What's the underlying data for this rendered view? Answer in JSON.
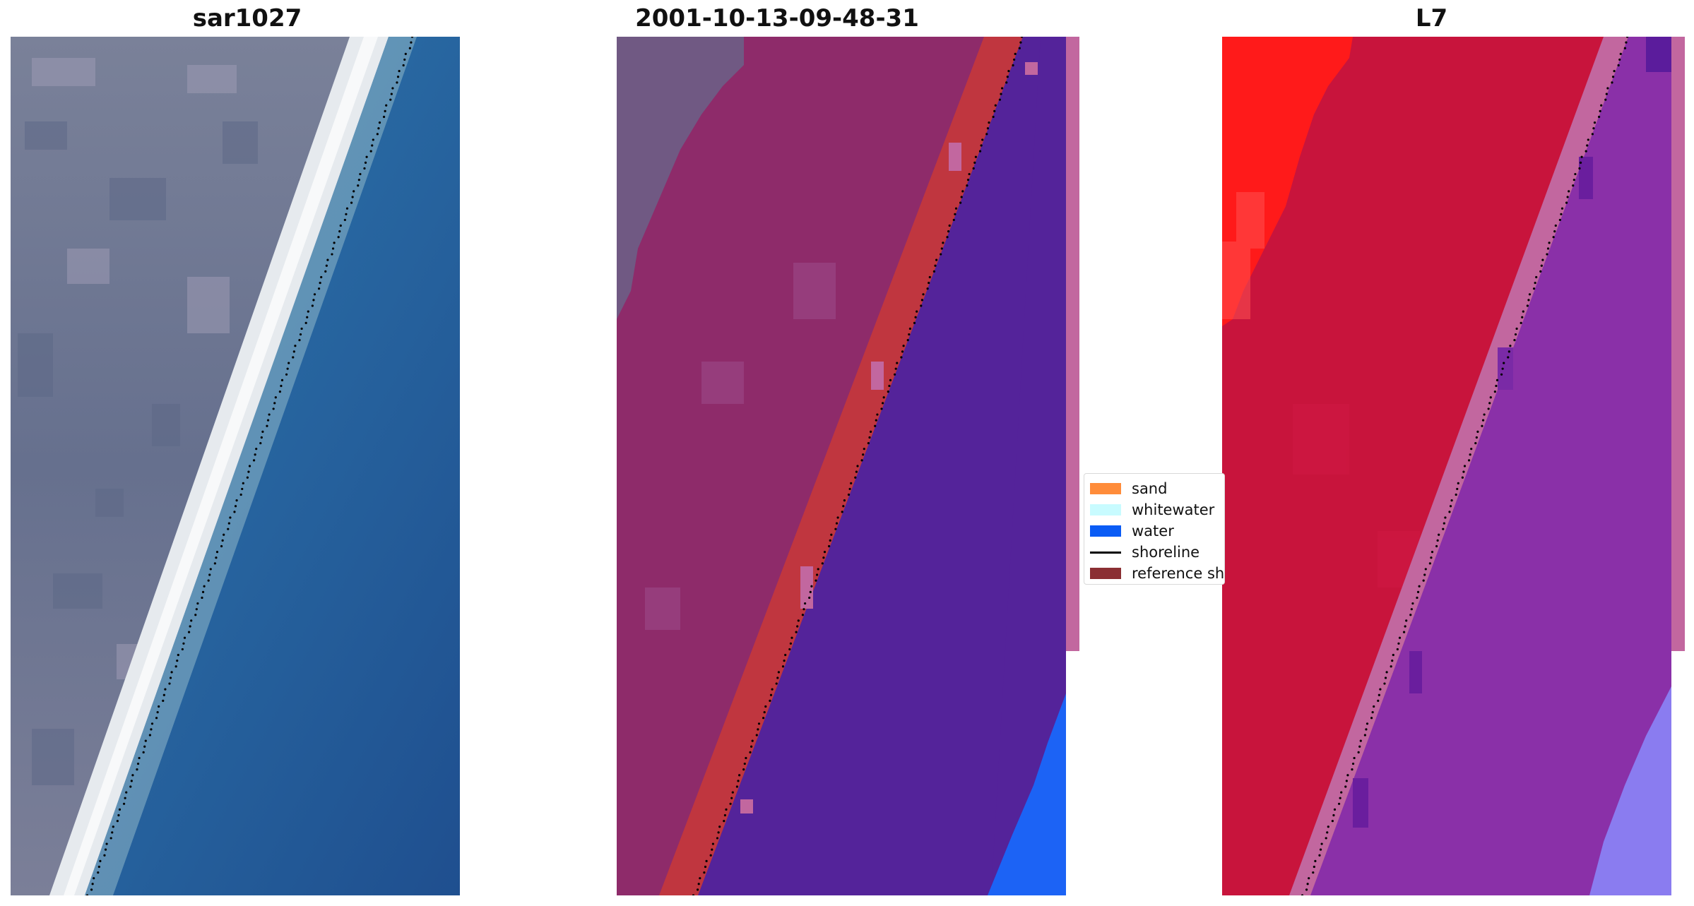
{
  "panels": [
    {
      "title": "sar1027"
    },
    {
      "title": "2001-10-13-09-48-31"
    },
    {
      "title": "L7"
    }
  ],
  "legend": {
    "items": [
      {
        "label": "sand",
        "color": "#ff8c3a",
        "kind": "patch"
      },
      {
        "label": "whitewater",
        "color": "#c8fbff",
        "kind": "patch"
      },
      {
        "label": "water",
        "color": "#0a5cf5",
        "kind": "patch"
      },
      {
        "label": "shoreline",
        "color": "#000000",
        "kind": "line"
      },
      {
        "label": "reference sh",
        "color": "#8b2f33",
        "kind": "patch"
      }
    ]
  },
  "colors": {
    "land_rgb": "#6e7690",
    "beach_rgb": "#e8ecef",
    "sea_rgb": "#2a6aa6",
    "class_land": "#8e2b6a",
    "class_sand": "#c0363f",
    "class_water": "#54239a",
    "class_water_edge": "#1c63f5",
    "mndwi_land": "#c8143c",
    "mndwi_water": "#8a30a8",
    "mndwi_hot": "#ff1a1a",
    "mndwi_light": "#8a7cf0"
  }
}
